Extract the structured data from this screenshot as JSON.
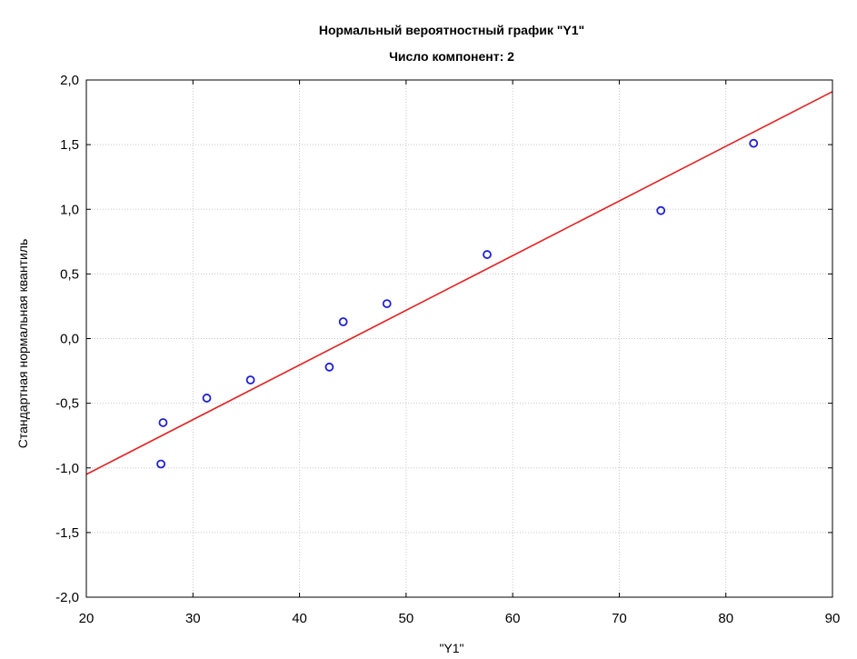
{
  "chart_data": {
    "type": "scatter",
    "title": "Нормальный вероятностный график  \"Y1\"",
    "subtitle": "Число компонент: 2",
    "xlabel": "\"Y1\"",
    "ylabel": "Стандартная нормальная квантиль",
    "xlim": [
      20,
      90
    ],
    "ylim": [
      -2.0,
      2.0
    ],
    "x_ticks": [
      20,
      30,
      40,
      50,
      60,
      70,
      80,
      90
    ],
    "x_tick_labels": [
      "20",
      "30",
      "40",
      "50",
      "60",
      "70",
      "80",
      "90"
    ],
    "y_ticks": [
      -2.0,
      -1.5,
      -1.0,
      -0.5,
      0.0,
      0.5,
      1.0,
      1.5,
      2.0
    ],
    "y_tick_labels": [
      "-2,0",
      "-1,5",
      "-1,0",
      "-0,5",
      "0,0",
      "0,5",
      "1,0",
      "1,5",
      "2,0"
    ],
    "grid": true,
    "points": [
      {
        "x": 27.0,
        "y": -0.97
      },
      {
        "x": 27.2,
        "y": -0.65
      },
      {
        "x": 31.3,
        "y": -0.46
      },
      {
        "x": 35.4,
        "y": -0.32
      },
      {
        "x": 42.8,
        "y": -0.22
      },
      {
        "x": 44.1,
        "y": 0.13
      },
      {
        "x": 48.2,
        "y": 0.27
      },
      {
        "x": 57.6,
        "y": 0.65
      },
      {
        "x": 73.9,
        "y": 0.99
      },
      {
        "x": 82.6,
        "y": 1.51
      }
    ],
    "fit_line": {
      "x": [
        20,
        90
      ],
      "y": [
        -1.05,
        1.91
      ]
    },
    "colors": {
      "points": "#1f1fd6",
      "fit_line": "#e32222",
      "grid": "#c8c8c8",
      "axes": "#000000"
    }
  }
}
